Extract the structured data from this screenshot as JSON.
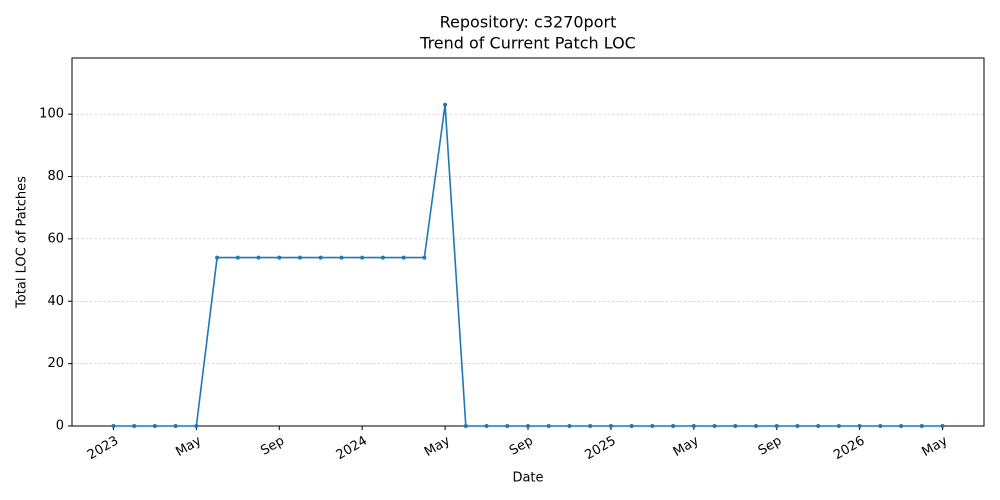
{
  "chart_data": {
    "type": "line",
    "title": "Repository: c3270port",
    "subtitle": "Trend of Current Patch LOC",
    "x_label": "Date",
    "y_label": "Total LOC of Patches",
    "x": [
      "2023-01",
      "2023-02",
      "2023-03",
      "2023-04",
      "2023-05",
      "2023-06",
      "2023-07",
      "2023-08",
      "2023-09",
      "2023-10",
      "2023-11",
      "2023-12",
      "2024-01",
      "2024-02",
      "2024-03",
      "2024-04",
      "2024-05",
      "2024-06",
      "2024-07",
      "2024-08",
      "2024-09",
      "2024-10",
      "2024-11",
      "2024-12",
      "2025-01",
      "2025-02",
      "2025-03",
      "2025-04",
      "2025-05",
      "2025-06",
      "2025-07",
      "2025-08",
      "2025-09",
      "2025-10",
      "2025-11",
      "2025-12",
      "2026-01",
      "2026-02",
      "2026-03",
      "2026-04",
      "2026-05"
    ],
    "values": [
      0,
      0,
      0,
      0,
      0,
      54,
      54,
      54,
      54,
      54,
      54,
      54,
      54,
      54,
      54,
      54,
      103,
      0,
      0,
      0,
      0,
      0,
      0,
      0,
      0,
      0,
      0,
      0,
      0,
      0,
      0,
      0,
      0,
      0,
      0,
      0,
      0,
      0,
      0,
      0,
      0
    ],
    "color": "#1f77b4",
    "xlim": [
      "2022-11",
      "2026-07"
    ],
    "xticks": [
      {
        "value": "2023-01",
        "label": "2023"
      },
      {
        "value": "2023-05",
        "label": "May"
      },
      {
        "value": "2023-09",
        "label": "Sep"
      },
      {
        "value": "2024-01",
        "label": "2024"
      },
      {
        "value": "2024-05",
        "label": "May"
      },
      {
        "value": "2024-09",
        "label": "Sep"
      },
      {
        "value": "2025-01",
        "label": "2025"
      },
      {
        "value": "2025-05",
        "label": "May"
      },
      {
        "value": "2025-09",
        "label": "Sep"
      },
      {
        "value": "2026-01",
        "label": "2026"
      },
      {
        "value": "2026-05",
        "label": "May"
      }
    ],
    "ylim": [
      0,
      118
    ],
    "yticks": [
      0,
      20,
      40,
      60,
      80,
      100
    ],
    "grid": true
  }
}
